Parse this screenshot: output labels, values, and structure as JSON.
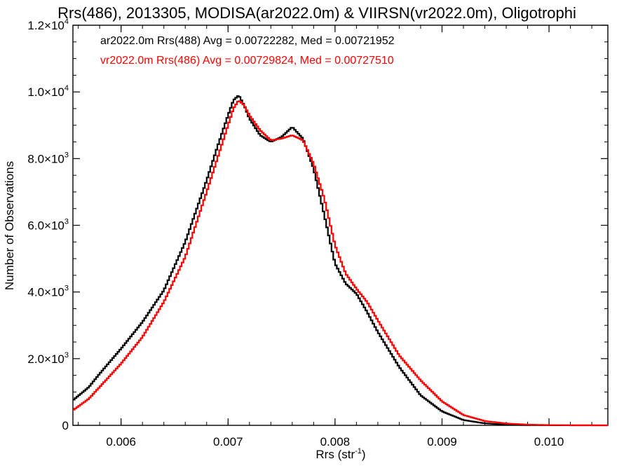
{
  "chart_data": {
    "type": "line",
    "title": "Rrs(486), 2013305, MODISA(ar2022.0m) & VIIRSN(vr2022.0m), Oligotrophi",
    "xlabel_main": "Rrs (str",
    "xlabel_sup": "-1",
    "xlabel_tail": ")",
    "ylabel": "Number of Observations",
    "xlim": [
      0.00555,
      0.01055
    ],
    "ylim": [
      0,
      12000
    ],
    "x_ticks": [
      {
        "value": 0.006,
        "label": "0.006"
      },
      {
        "value": 0.007,
        "label": "0.007"
      },
      {
        "value": 0.008,
        "label": "0.008"
      },
      {
        "value": 0.009,
        "label": "0.009"
      },
      {
        "value": 0.01,
        "label": "0.010"
      }
    ],
    "y_ticks": [
      {
        "value": 0,
        "mant": "0",
        "exp": ""
      },
      {
        "value": 2000,
        "mant": "2.0×10",
        "exp": "3"
      },
      {
        "value": 4000,
        "mant": "4.0×10",
        "exp": "3"
      },
      {
        "value": 6000,
        "mant": "6.0×10",
        "exp": "3"
      },
      {
        "value": 8000,
        "mant": "8.0×10",
        "exp": "3"
      },
      {
        "value": 10000,
        "mant": "1.0×10",
        "exp": "4"
      },
      {
        "value": 12000,
        "mant": "1.2×10",
        "exp": "4"
      }
    ],
    "legend_position": "top-left",
    "series": [
      {
        "legend": "ar2022.0m Rrs(488) Avg = 0.00722282, Med = 0.00721952",
        "color": "#000000",
        "points": [
          [
            0.00555,
            750
          ],
          [
            0.0057,
            1150
          ],
          [
            0.0058,
            1550
          ],
          [
            0.006,
            2300
          ],
          [
            0.0062,
            3100
          ],
          [
            0.0064,
            4050
          ],
          [
            0.0066,
            5500
          ],
          [
            0.0068,
            7350
          ],
          [
            0.0069,
            8350
          ],
          [
            0.007,
            9300
          ],
          [
            0.00705,
            9750
          ],
          [
            0.0071,
            9900
          ],
          [
            0.00715,
            9600
          ],
          [
            0.0072,
            9200
          ],
          [
            0.0073,
            8700
          ],
          [
            0.0074,
            8500
          ],
          [
            0.0075,
            8650
          ],
          [
            0.0076,
            8950
          ],
          [
            0.0077,
            8600
          ],
          [
            0.0078,
            7700
          ],
          [
            0.0079,
            6300
          ],
          [
            0.008,
            4850
          ],
          [
            0.0081,
            4250
          ],
          [
            0.0082,
            3950
          ],
          [
            0.0083,
            3400
          ],
          [
            0.0084,
            2800
          ],
          [
            0.0086,
            1750
          ],
          [
            0.0088,
            900
          ],
          [
            0.009,
            420
          ],
          [
            0.0092,
            160
          ],
          [
            0.0094,
            60
          ],
          [
            0.0096,
            20
          ],
          [
            0.0098,
            8
          ],
          [
            0.01,
            3
          ],
          [
            0.0103,
            0
          ],
          [
            0.01055,
            0
          ]
        ]
      },
      {
        "legend": "vr2022.0m Rrs(486) Avg = 0.00729824, Med = 0.00727510",
        "color": "#ff0000",
        "points": [
          [
            0.00555,
            450
          ],
          [
            0.0057,
            800
          ],
          [
            0.0058,
            1150
          ],
          [
            0.006,
            1850
          ],
          [
            0.0062,
            2650
          ],
          [
            0.0064,
            3700
          ],
          [
            0.0066,
            5050
          ],
          [
            0.0068,
            7000
          ],
          [
            0.0069,
            8000
          ],
          [
            0.007,
            9000
          ],
          [
            0.00705,
            9500
          ],
          [
            0.0071,
            9750
          ],
          [
            0.00715,
            9600
          ],
          [
            0.0072,
            9300
          ],
          [
            0.0073,
            8850
          ],
          [
            0.0074,
            8550
          ],
          [
            0.0075,
            8600
          ],
          [
            0.0076,
            8700
          ],
          [
            0.0077,
            8550
          ],
          [
            0.0078,
            7850
          ],
          [
            0.0079,
            6800
          ],
          [
            0.008,
            5400
          ],
          [
            0.0081,
            4550
          ],
          [
            0.0082,
            4100
          ],
          [
            0.0083,
            3700
          ],
          [
            0.0084,
            3150
          ],
          [
            0.0086,
            2100
          ],
          [
            0.0088,
            1350
          ],
          [
            0.009,
            720
          ],
          [
            0.0092,
            310
          ],
          [
            0.0094,
            130
          ],
          [
            0.0096,
            55
          ],
          [
            0.0098,
            22
          ],
          [
            0.01,
            8
          ],
          [
            0.0103,
            2
          ],
          [
            0.01055,
            0
          ]
        ]
      }
    ]
  }
}
